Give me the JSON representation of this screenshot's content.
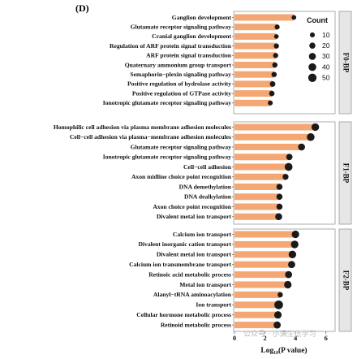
{
  "panel_tag": "(D)",
  "watermark": "公众号 · 小满生信学习",
  "chart_data": {
    "type": "bar",
    "xlabel": "Log₁₀(P value)",
    "xticks": [
      0,
      2,
      4,
      6
    ],
    "xlim": [
      0,
      6.6
    ],
    "bar_color": "#f4a673",
    "dot_color": "#1a1a1a",
    "legend": {
      "title": "Count",
      "entries": [
        10,
        20,
        30,
        40,
        50
      ],
      "placement": "top-right"
    },
    "facets": [
      {
        "name": "F0-BP",
        "categories": [
          "Ganglion development",
          "Glutamate receptor signaling pathway",
          "Cranial ganglion development",
          "Regulation of ARF protein signal transduction",
          "ARF protein signal transduction",
          "Quaternary ammonium group transport",
          "Semaphorin−plexin signaling pathway",
          "Positive regulation of hydrolase activity",
          "Positive regulation of GTPase activity",
          "Ionotropic glutamate receptor signaling pathway"
        ],
        "values": [
          3.9,
          2.8,
          2.75,
          2.75,
          2.7,
          2.65,
          2.6,
          2.5,
          2.45,
          2.35
        ],
        "counts": [
          8,
          10,
          7,
          11,
          11,
          12,
          12,
          15,
          13,
          9
        ]
      },
      {
        "name": "F1-BP",
        "categories": [
          "Homophilic cell adhesion via plasma membrane adhesion molecules",
          "Cell−cell adhesion via plasma−membrane adhesion molecules",
          "Glutamate receptor signaling pathway",
          "Ionotropic glutamate receptor signaling pathway",
          "Cell−cell adhesion",
          "Axon midline choice point recognition",
          "DNA demethylation",
          "DNA dealkylation",
          "Axon choice point recognition",
          "Divalent metal ion transport"
        ],
        "values": [
          5.3,
          5.0,
          4.4,
          3.6,
          3.55,
          3.35,
          2.95,
          2.95,
          2.95,
          2.9
        ],
        "counts": [
          38,
          40,
          30,
          22,
          42,
          18,
          20,
          20,
          20,
          30
        ]
      },
      {
        "name": "F2-BP",
        "categories": [
          "Calcium ion transport",
          "Divalent inorganic cation transport",
          "Divalent metal ion transport",
          "Calcium ion transmembrane transport",
          "Retinoic acid metabolic process",
          "Metal ion transport",
          "Alanyl−tRNA aminoacylation",
          "Ion transport",
          "Cellular hormone metabolic process",
          "Retinoid metabolic process"
        ],
        "values": [
          4.0,
          3.95,
          3.8,
          3.75,
          3.55,
          3.5,
          3.0,
          2.9,
          2.85,
          2.8
        ],
        "counts": [
          36,
          38,
          38,
          32,
          30,
          36,
          12,
          55,
          36,
          32
        ]
      }
    ]
  }
}
